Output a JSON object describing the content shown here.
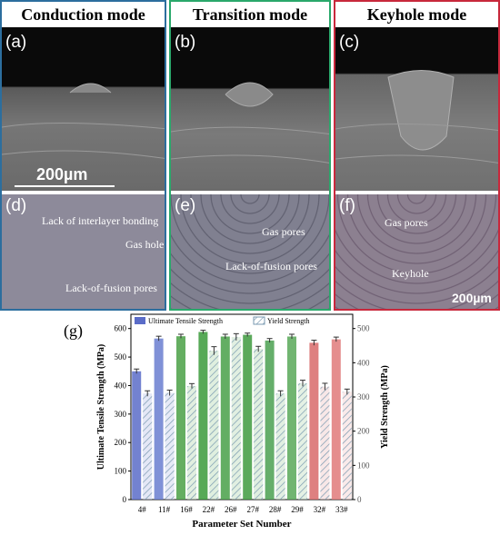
{
  "panels": [
    {
      "mode": "Conduction mode",
      "top_label": "(a)",
      "bottom_label": "(d)",
      "border": "#2c6e9e",
      "scale_bar": "200µm",
      "annotations": [
        "Lack of interlayer bonding",
        "Gas hole",
        "Lack-of-fusion pores"
      ]
    },
    {
      "mode": "Transition mode",
      "top_label": "(b)",
      "bottom_label": "(e)",
      "border": "#2aa86b",
      "annotations": [
        "Gas pores",
        "Lack-of-fusion pores"
      ]
    },
    {
      "mode": "Keyhole mode",
      "top_label": "(c)",
      "bottom_label": "(f)",
      "border": "#c8283c",
      "scale_bar": "200µm",
      "annotations": [
        "Gas pores",
        "Keyhole"
      ]
    }
  ],
  "chart_label": "(g)",
  "chart_data": {
    "type": "bar",
    "categories": [
      "4#",
      "11#",
      "16#",
      "22#",
      "26#",
      "27#",
      "28#",
      "29#",
      "32#",
      "33#"
    ],
    "series": [
      {
        "name": "Ultimate Tensile Strength",
        "values": [
          450,
          565,
          573,
          588,
          572,
          578,
          558,
          572,
          550,
          562
        ],
        "errors": [
          8,
          8,
          7,
          6,
          8,
          6,
          7,
          8,
          9,
          8
        ]
      },
      {
        "name": "Yield Strength",
        "values": [
          310,
          312,
          332,
          435,
          475,
          440,
          310,
          340,
          330,
          315
        ],
        "errors": [
          8,
          8,
          7,
          12,
          10,
          8,
          8,
          9,
          10,
          8
        ]
      }
    ],
    "xlabel": "Parameter Set Number",
    "ylabel": "Ultimate Tensile Strength (MPa)",
    "y2label": "Yield Strength (MPa)",
    "ylim": [
      0,
      650
    ],
    "y2lim": [
      0,
      541.67
    ],
    "yticks": [
      0,
      100,
      200,
      300,
      400,
      500,
      600
    ],
    "y2ticks": [
      0,
      100,
      200,
      300,
      400,
      500
    ],
    "bar_colors": [
      "#5a6cc8",
      "#6a7ed0",
      "#4aa045",
      "#3a9a3a",
      "#48a048",
      "#3e9a3e",
      "#4aa050",
      "#58a858",
      "#d86a6a",
      "#e07a7a"
    ]
  }
}
